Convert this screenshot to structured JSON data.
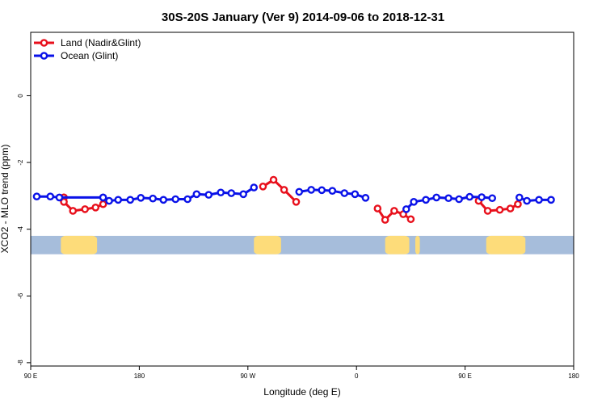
{
  "chart_data": {
    "type": "line",
    "title": "30S-20S January (Ver 9)   2014-09-06 to 2018-12-31",
    "xlabel": "Longitude (deg E)",
    "ylabel": "XCO2 - MLO trend (ppm)",
    "xlim": [
      90,
      450
    ],
    "ylim": [
      -8.1,
      1.9
    ],
    "x_ticks": [
      {
        "value": 90,
        "label": "90 E"
      },
      {
        "value": 162,
        "label": "180"
      },
      {
        "value": 234,
        "label": "90 W"
      },
      {
        "value": 306,
        "label": "0"
      },
      {
        "value": 378,
        "label": "90 E"
      },
      {
        "value": 450,
        "label": "180"
      }
    ],
    "y_ticks": [
      {
        "value": 0,
        "label": "0"
      },
      {
        "value": -2,
        "label": "-2"
      },
      {
        "value": -4,
        "label": "-4"
      },
      {
        "value": -6,
        "label": "-6"
      },
      {
        "value": -8,
        "label": "-8"
      }
    ],
    "grid": false,
    "legend_position": "top-left",
    "land_band": {
      "y_top": -4.2,
      "y_bottom": -4.75,
      "ocean_color": "#a6bddb",
      "land_color": "#fddc7a"
    },
    "series": [
      {
        "name": "Land (Nadir&Glint)",
        "color": "#e8101c",
        "segments": [
          [
            [
              112,
              -3.05
            ],
            [
              112,
              -3.05
            ],
            [
              112,
              -3.05
            ]
          ],
          [
            [
              112,
              -3.18
            ],
            [
              118,
              -3.45
            ],
            [
              126,
              -3.4
            ],
            [
              133,
              -3.35
            ],
            [
              138,
              -3.25
            ]
          ],
          [
            [
              244,
              -2.72
            ],
            [
              251,
              -2.52
            ],
            [
              258,
              -2.82
            ],
            [
              266,
              -3.18
            ]
          ],
          [
            [
              320,
              -3.38
            ],
            [
              325,
              -3.72
            ],
            [
              331,
              -3.45
            ],
            [
              337,
              -3.55
            ],
            [
              342,
              -3.7
            ]
          ],
          [
            [
              387,
              -3.15
            ],
            [
              393,
              -3.45
            ],
            [
              401,
              -3.42
            ],
            [
              408,
              -3.38
            ],
            [
              413,
              -3.25
            ]
          ]
        ]
      },
      {
        "name": "Ocean (Glint)",
        "color": "#0a12e8",
        "segments": [
          [
            [
              94,
              -3.02
            ],
            [
              103,
              -3.02
            ],
            [
              109,
              -3.05
            ],
            [
              138,
              -3.05
            ]
          ],
          [
            [
              138,
              -3.05
            ]
          ],
          [
            [
              142,
              -3.15
            ],
            [
              148,
              -3.12
            ],
            [
              156,
              -3.12
            ],
            [
              163,
              -3.06
            ],
            [
              171,
              -3.08
            ],
            [
              178,
              -3.12
            ],
            [
              186,
              -3.1
            ],
            [
              194,
              -3.1
            ],
            [
              200,
              -2.95
            ],
            [
              208,
              -2.97
            ],
            [
              216,
              -2.9
            ],
            [
              223,
              -2.92
            ],
            [
              231,
              -2.95
            ],
            [
              238,
              -2.75
            ]
          ],
          [
            [
              268,
              -2.88
            ],
            [
              276,
              -2.82
            ],
            [
              283,
              -2.83
            ],
            [
              290,
              -2.85
            ],
            [
              298,
              -2.92
            ],
            [
              305,
              -2.95
            ],
            [
              312,
              -3.06
            ]
          ],
          [
            [
              339,
              -3.4
            ],
            [
              344,
              -3.18
            ],
            [
              352,
              -3.12
            ],
            [
              359,
              -3.05
            ],
            [
              367,
              -3.07
            ],
            [
              374,
              -3.1
            ],
            [
              381,
              -3.03
            ],
            [
              389,
              -3.04
            ],
            [
              396,
              -3.07
            ]
          ],
          [
            [
              414,
              -3.05
            ],
            [
              419,
              -3.15
            ],
            [
              427,
              -3.12
            ],
            [
              435,
              -3.12
            ]
          ]
        ]
      }
    ]
  }
}
